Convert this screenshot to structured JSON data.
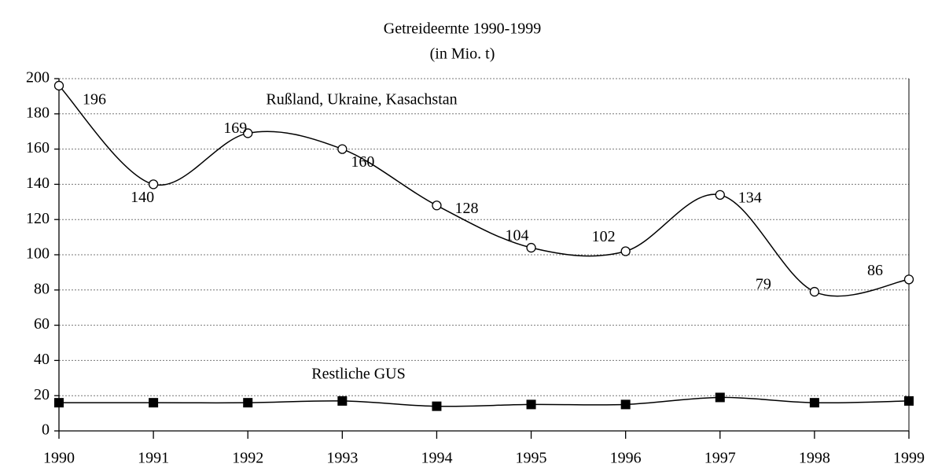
{
  "chart_data": {
    "type": "line",
    "title": "Getreideernte 1990-1999",
    "subtitle": "(in Mio. t)",
    "x": [
      1990,
      1991,
      1992,
      1993,
      1994,
      1995,
      1996,
      1997,
      1998,
      1999
    ],
    "xlim": [
      1990,
      1999
    ],
    "xticks": [
      1990,
      1991,
      1992,
      1993,
      1994,
      1995,
      1996,
      1997,
      1998,
      1999
    ],
    "ylim": [
      0,
      200
    ],
    "yticks": [
      0,
      20,
      40,
      60,
      80,
      100,
      120,
      140,
      160,
      180,
      200
    ],
    "grid": true,
    "series": [
      {
        "name": "Rußland, Ukraine, Kasachstan",
        "color": "#000000",
        "marker": "open-circle",
        "values": [
          196,
          140,
          169,
          160,
          128,
          104,
          102,
          134,
          79,
          86
        ]
      },
      {
        "name": "Restliche GUS",
        "color": "#000000",
        "marker": "filled-square",
        "values": [
          16,
          16,
          16,
          17,
          14,
          15,
          15,
          19,
          16,
          17
        ]
      }
    ]
  }
}
